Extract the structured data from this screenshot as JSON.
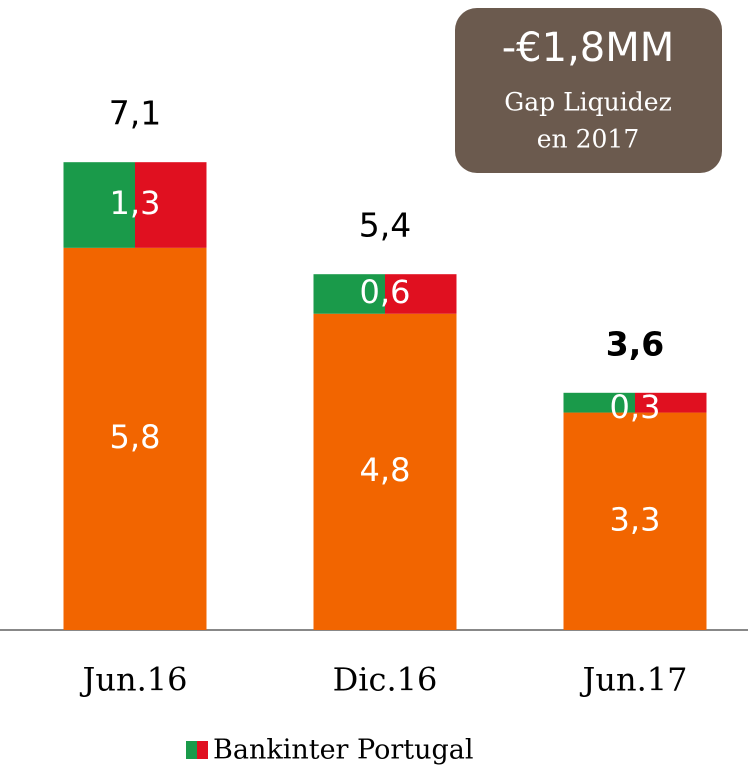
{
  "chart_data": {
    "type": "stacked_bar",
    "categories": [
      "Jun.16",
      "Dic.16",
      "Jun.17"
    ],
    "series": [
      {
        "color": "#f26500",
        "values": [
          5.8,
          4.8,
          3.3
        ],
        "value_labels": [
          "5,8",
          "4,8",
          "3,3"
        ]
      },
      {
        "name": "Bankinter Portugal",
        "colors": [
          "#1a9a4a",
          "#e01020"
        ],
        "values": [
          1.3,
          0.6,
          0.3
        ],
        "value_labels": [
          "1,3",
          "0,6",
          "0,3"
        ]
      }
    ],
    "totals": {
      "values": [
        7.1,
        5.4,
        3.6
      ],
      "value_labels": [
        "7,1",
        "5,4",
        "3,6"
      ]
    },
    "ylim": [
      0,
      9
    ],
    "annotation": {
      "value": "-€1,8MM",
      "text": [
        "Gap Liquidez",
        "en 2017"
      ],
      "color": "#6b5a4e"
    }
  }
}
